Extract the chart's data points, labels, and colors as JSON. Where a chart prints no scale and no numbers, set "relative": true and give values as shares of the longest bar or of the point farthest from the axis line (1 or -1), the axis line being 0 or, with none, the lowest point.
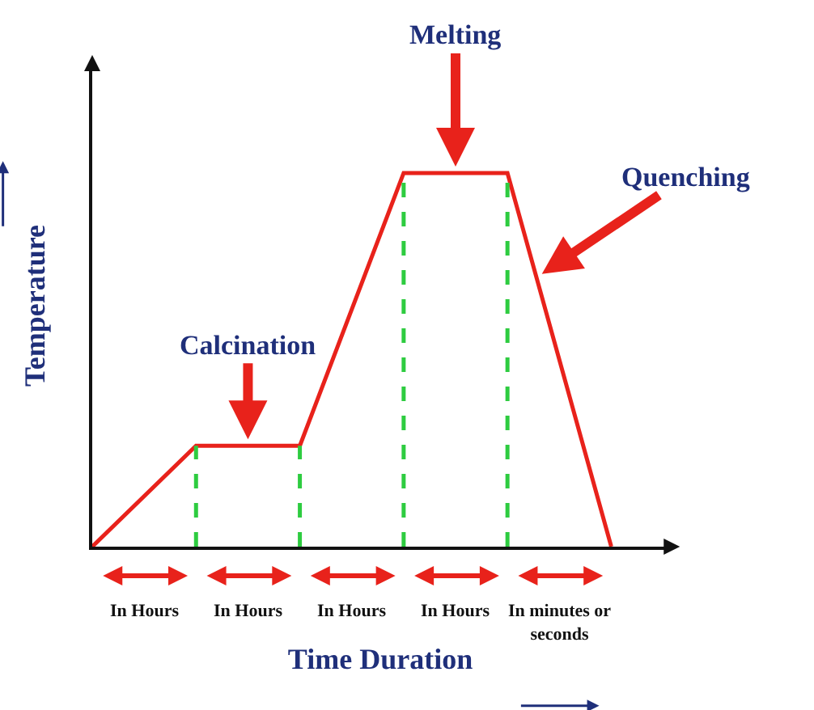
{
  "chart_data": {
    "type": "line",
    "relative": true,
    "xlabel": "Time Duration",
    "ylabel": "Temperature",
    "categories": [
      null,
      null,
      null,
      null,
      null,
      null
    ],
    "tick_labels": false,
    "marker": "none",
    "line_style": "solid",
    "series": [
      {
        "color": "#e8221b",
        "values": [
          0,
          0.27,
          0.27,
          1,
          1,
          0
        ]
      }
    ],
    "annotations": [
      "Calcination",
      "Melting",
      "Quenching",
      "In Hours",
      "In Hours",
      "In Hours",
      "In Hours",
      "In minutes or seconds"
    ]
  }
}
